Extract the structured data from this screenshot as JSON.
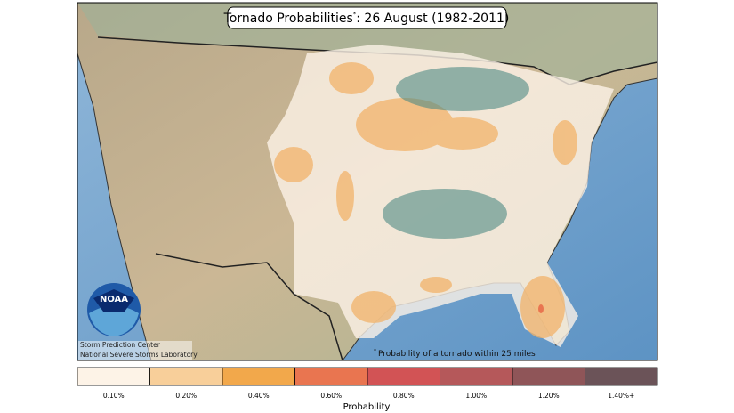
{
  "title": {
    "main": "Tornado Probabilities",
    "marker": "*",
    "rest": ": 26 August (1982-2011)"
  },
  "logo": "NOAA",
  "credits": [
    "Storm Prediction Center",
    "National Severe Storms Laboratory"
  ],
  "footnote": {
    "marker": "*",
    "text": "Probability of a tornado within 25 miles"
  },
  "legend": {
    "label": "Probability",
    "items": [
      {
        "label": "0.10%",
        "color": "#fdf3e7"
      },
      {
        "label": "0.20%",
        "color": "#f8cf9a"
      },
      {
        "label": "0.40%",
        "color": "#f2a84b"
      },
      {
        "label": "0.60%",
        "color": "#e97550"
      },
      {
        "label": "0.80%",
        "color": "#d25355"
      },
      {
        "label": "1.00%",
        "color": "#b5585a"
      },
      {
        "label": "1.20%",
        "color": "#8f5558"
      },
      {
        "label": "1.40%+",
        "color": "#6b5358"
      }
    ]
  }
}
